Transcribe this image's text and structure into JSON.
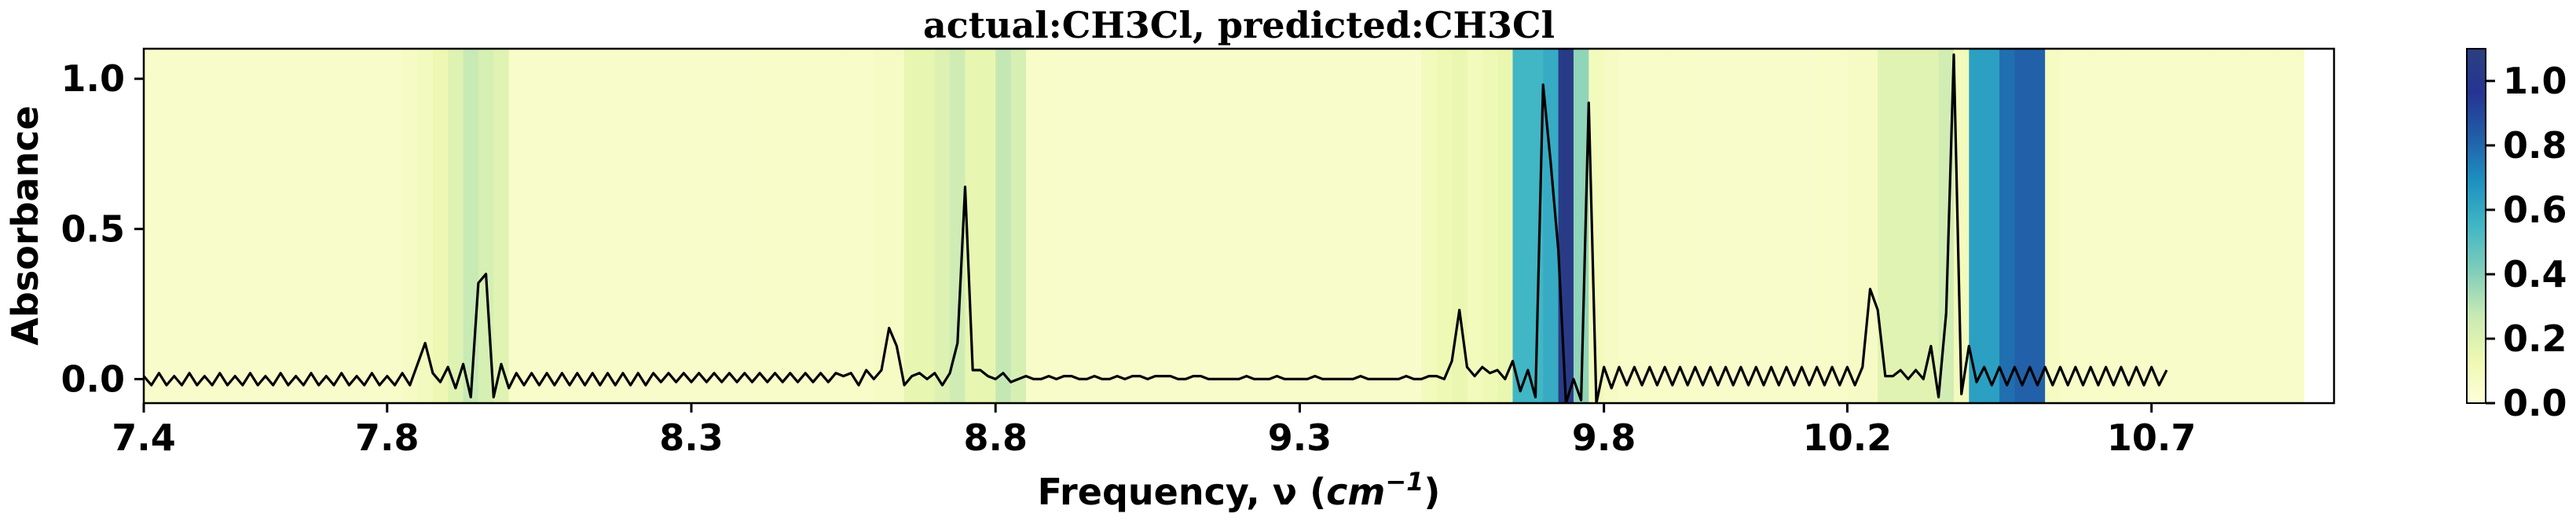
{
  "chart_data": {
    "type": "line",
    "title": "actual:CH3Cl, predicted:CH3Cl",
    "xlabel": "Frequency, ν (cm⁻¹)",
    "xlabel_prefix": "Frequency, ν (",
    "xlabel_unit": "cm",
    "xlabel_exponent": "−1",
    "xlabel_suffix": ")",
    "ylabel": "Absorbance",
    "xlim": [
      7.4,
      11.0
    ],
    "ylim": [
      -0.08,
      1.1
    ],
    "xticks": [
      {
        "value": 7.4,
        "label": "7.4"
      },
      {
        "value": 7.8,
        "label": "7.8"
      },
      {
        "value": 8.3,
        "label": "8.3"
      },
      {
        "value": 8.8,
        "label": "8.8"
      },
      {
        "value": 9.3,
        "label": "9.3"
      },
      {
        "value": 9.8,
        "label": "9.8"
      },
      {
        "value": 10.2,
        "label": "10.2"
      },
      {
        "value": 10.7,
        "label": "10.7"
      }
    ],
    "yticks": [
      {
        "value": 0.0,
        "label": "0.0"
      },
      {
        "value": 0.5,
        "label": "0.5"
      },
      {
        "value": 1.0,
        "label": "1.0"
      }
    ],
    "series": [
      {
        "x_start": 7.4,
        "x_step": 0.0125,
        "values": [
          0.01,
          -0.02,
          0.02,
          -0.02,
          0.01,
          -0.02,
          0.02,
          -0.02,
          0.01,
          -0.02,
          0.02,
          -0.02,
          0.01,
          -0.02,
          0.02,
          -0.02,
          0.01,
          -0.02,
          0.02,
          -0.02,
          0.01,
          -0.02,
          0.02,
          -0.02,
          0.01,
          -0.02,
          0.02,
          -0.02,
          0.01,
          -0.02,
          0.02,
          -0.02,
          0.01,
          -0.02,
          0.02,
          -0.02,
          0.05,
          0.12,
          0.02,
          -0.01,
          0.04,
          -0.03,
          0.05,
          -0.06,
          0.32,
          0.35,
          -0.06,
          0.05,
          -0.03,
          0.02,
          -0.02,
          0.02,
          -0.02,
          0.02,
          -0.02,
          0.02,
          -0.02,
          0.02,
          -0.02,
          0.02,
          -0.02,
          0.02,
          -0.02,
          0.02,
          -0.02,
          0.02,
          -0.02,
          0.02,
          -0.01,
          0.02,
          -0.01,
          0.02,
          -0.01,
          0.02,
          -0.01,
          0.02,
          -0.01,
          0.02,
          -0.01,
          0.02,
          -0.01,
          0.02,
          -0.01,
          0.02,
          -0.01,
          0.02,
          -0.01,
          0.02,
          -0.01,
          0.02,
          -0.01,
          0.02,
          0.01,
          0.02,
          -0.02,
          0.03,
          0.0,
          0.03,
          0.17,
          0.11,
          -0.02,
          0.01,
          0.02,
          0.0,
          0.02,
          -0.02,
          0.02,
          0.12,
          0.64,
          0.03,
          0.03,
          0.01,
          0.0,
          0.02,
          -0.01,
          0.0,
          0.01,
          0.0,
          0.0,
          0.01,
          0.0,
          0.01,
          0.01,
          0.0,
          0.0,
          0.01,
          0.0,
          0.0,
          0.01,
          0.0,
          0.01,
          0.01,
          0.0,
          0.01,
          0.01,
          0.01,
          0.0,
          0.0,
          0.01,
          0.01,
          0.0,
          0.0,
          0.0,
          0.0,
          0.0,
          0.01,
          0.0,
          0.0,
          0.0,
          0.01,
          0.0,
          0.0,
          0.0,
          0.0,
          0.01,
          0.0,
          0.0,
          0.0,
          0.0,
          0.0,
          0.01,
          0.0,
          0.0,
          0.0,
          0.0,
          0.0,
          0.01,
          0.0,
          0.0,
          0.01,
          0.01,
          0.0,
          0.06,
          0.23,
          0.04,
          0.01,
          0.04,
          0.02,
          0.03,
          0.0,
          0.06,
          -0.04,
          0.03,
          -0.06,
          0.98,
          0.72,
          0.43,
          -0.08,
          0.0,
          -0.07,
          0.92,
          -0.08,
          0.04,
          -0.03,
          0.04,
          -0.02,
          0.04,
          -0.02,
          0.04,
          -0.02,
          0.04,
          -0.02,
          0.04,
          -0.02,
          0.04,
          -0.02,
          0.04,
          -0.02,
          0.04,
          -0.02,
          0.04,
          -0.02,
          0.04,
          -0.02,
          0.04,
          -0.02,
          0.04,
          -0.02,
          0.04,
          -0.02,
          0.04,
          -0.02,
          0.04,
          -0.02,
          0.04,
          -0.02,
          0.04,
          0.3,
          0.23,
          0.01,
          0.01,
          0.03,
          0.0,
          0.03,
          0.0,
          0.11,
          -0.06,
          0.22,
          1.08,
          -0.05,
          0.11,
          -0.01,
          0.04,
          -0.02,
          0.04,
          -0.02,
          0.04,
          -0.02,
          0.04,
          -0.02,
          0.04,
          -0.02,
          0.04,
          -0.02,
          0.04,
          -0.02,
          0.04,
          -0.02,
          0.04,
          -0.02,
          0.04,
          -0.02,
          0.04,
          -0.02,
          0.04,
          -0.02,
          0.03
        ]
      }
    ],
    "heatmap_bands": {
      "x_start": 7.4,
      "x_step": 0.025,
      "values": [
        0.05,
        0.05,
        0.05,
        0.05,
        0.05,
        0.05,
        0.05,
        0.05,
        0.05,
        0.05,
        0.05,
        0.05,
        0.05,
        0.05,
        0.05,
        0.05,
        0.06,
        0.07,
        0.09,
        0.13,
        0.19,
        0.27,
        0.22,
        0.18,
        0.06,
        0.05,
        0.05,
        0.05,
        0.05,
        0.05,
        0.05,
        0.05,
        0.05,
        0.05,
        0.05,
        0.05,
        0.05,
        0.05,
        0.05,
        0.05,
        0.06,
        0.06,
        0.06,
        0.06,
        0.06,
        0.06,
        0.06,
        0.06,
        0.07,
        0.07,
        0.16,
        0.16,
        0.2,
        0.25,
        0.16,
        0.16,
        0.28,
        0.22,
        0.06,
        0.06,
        0.05,
        0.05,
        0.05,
        0.05,
        0.05,
        0.05,
        0.05,
        0.05,
        0.05,
        0.05,
        0.05,
        0.05,
        0.05,
        0.05,
        0.05,
        0.05,
        0.05,
        0.05,
        0.05,
        0.05,
        0.05,
        0.05,
        0.05,
        0.05,
        0.1,
        0.12,
        0.15,
        0.1,
        0.12,
        0.15,
        0.55,
        0.55,
        0.59,
        1.05,
        0.38,
        0.1,
        0.07,
        0.06,
        0.06,
        0.06,
        0.06,
        0.06,
        0.05,
        0.05,
        0.05,
        0.05,
        0.05,
        0.05,
        0.05,
        0.05,
        0.06,
        0.06,
        0.07,
        0.07,
        0.18,
        0.18,
        0.18,
        0.18,
        0.24,
        0.1,
        0.63,
        0.63,
        0.78,
        0.82,
        0.82,
        0.08,
        0.06,
        0.06,
        0.06,
        0.06,
        0.06,
        0.06,
        0.06,
        0.06,
        0.06,
        0.06,
        0.06,
        0.06,
        0.06,
        0.06,
        0.06,
        0.06
      ]
    },
    "colorbar": {
      "range": [
        0.0,
        1.1
      ],
      "colormap": "YlGnBu",
      "ticks": [
        {
          "value": 0.0,
          "label": "0.0"
        },
        {
          "value": 0.2,
          "label": "0.2"
        },
        {
          "value": 0.4,
          "label": "0.4"
        },
        {
          "value": 0.6,
          "label": "0.6"
        },
        {
          "value": 0.8,
          "label": "0.8"
        },
        {
          "value": 1.0,
          "label": "1.0"
        }
      ]
    },
    "grid": false,
    "colors": {
      "line": "#000000",
      "low": "#ffffd9",
      "high": "#2c3f7f"
    }
  }
}
